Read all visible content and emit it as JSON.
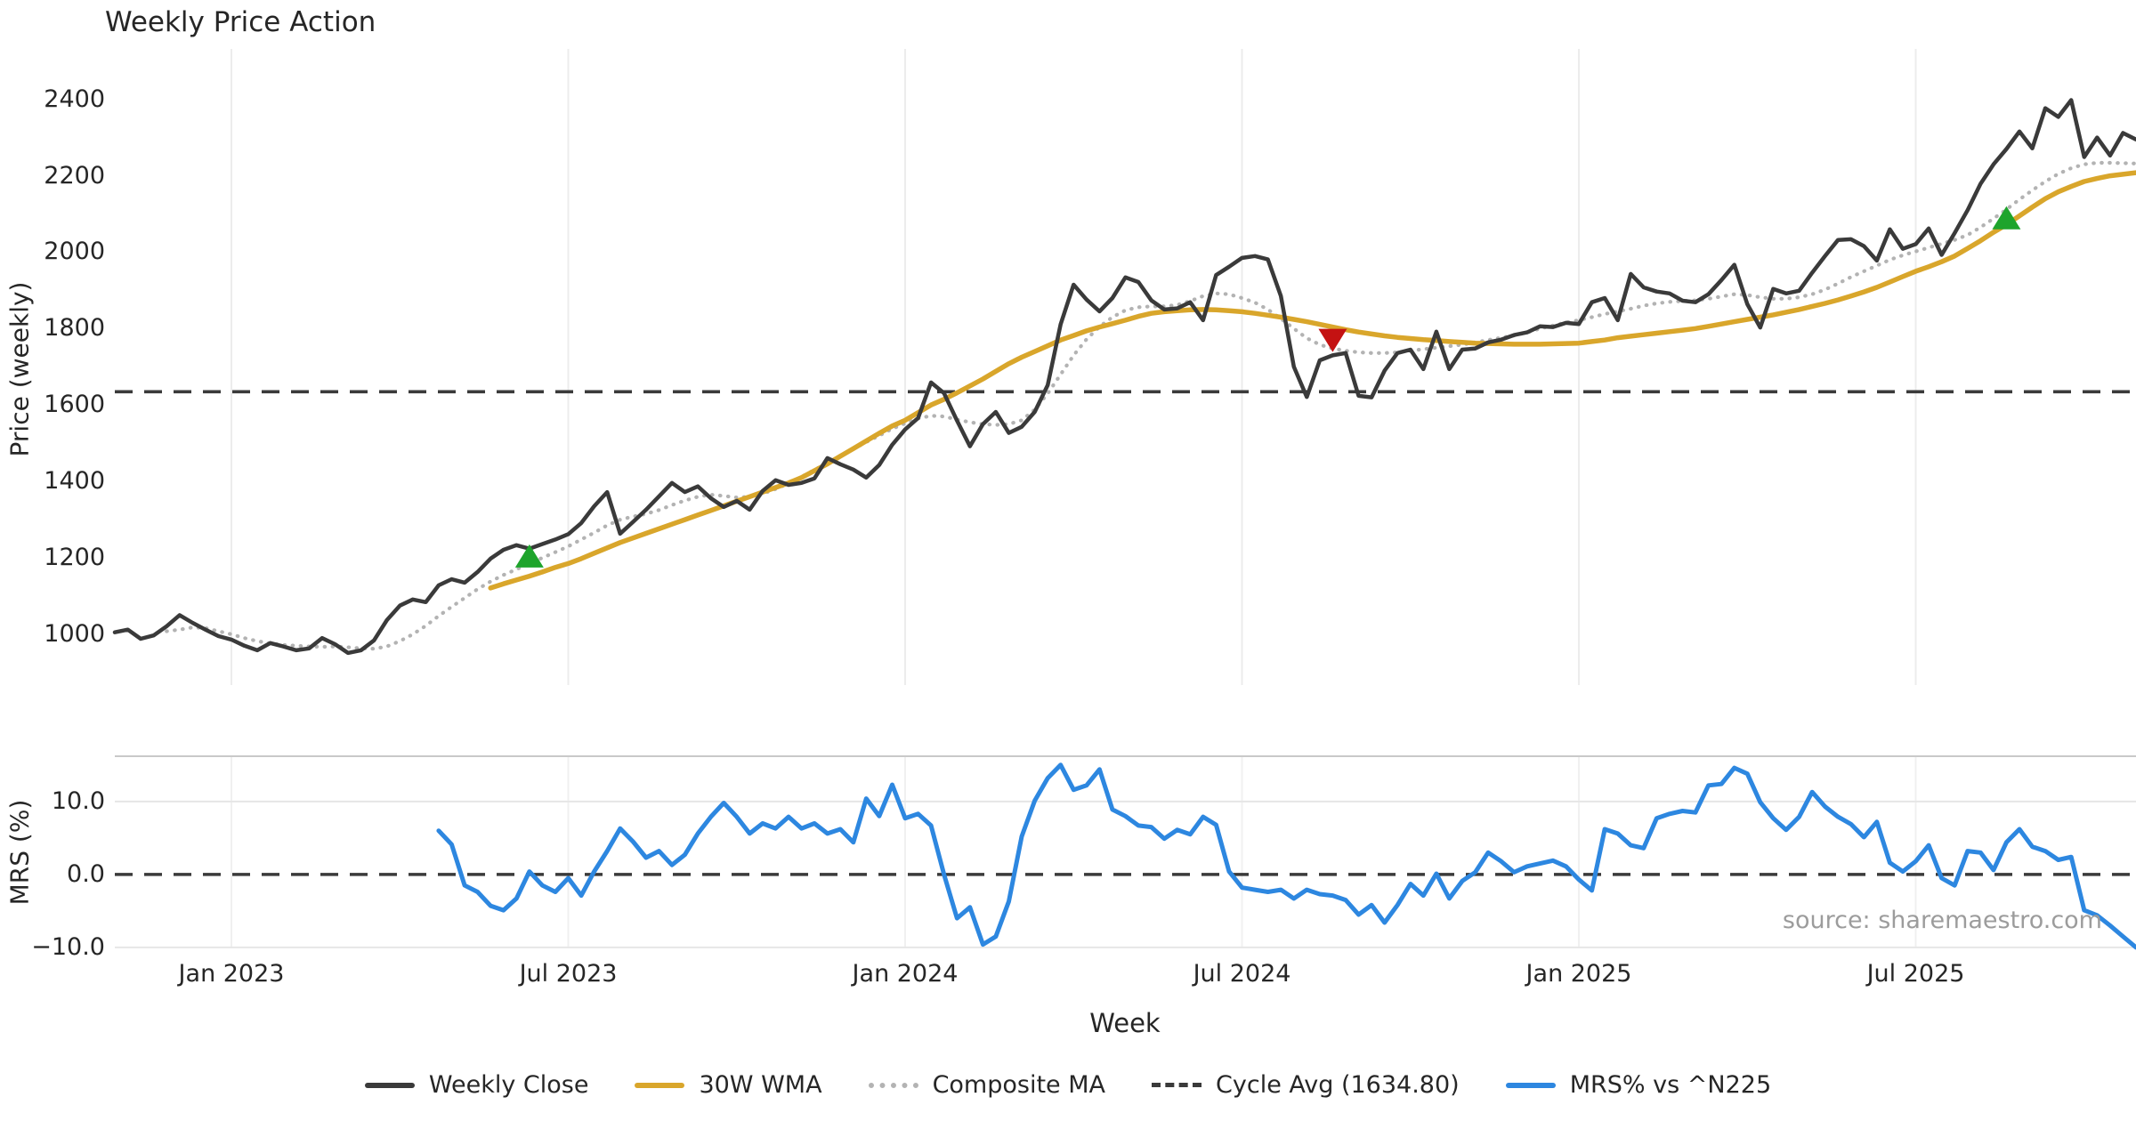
{
  "chart_data": {
    "type": "line",
    "title": "Weekly Price Action",
    "xlabel": "Week",
    "source": "source: sharemaestro.com",
    "weeks_total": 157,
    "x_ticks": [
      {
        "label": "Jan 2023",
        "week": 9
      },
      {
        "label": "Jul 2023",
        "week": 35
      },
      {
        "label": "Jan 2024",
        "week": 61
      },
      {
        "label": "Jul 2024",
        "week": 87
      },
      {
        "label": "Jan 2025",
        "week": 113
      },
      {
        "label": "Jul 2025",
        "week": 139
      }
    ],
    "price_panel": {
      "ylabel": "Price (weekly)",
      "ylim": [
        867,
        2532
      ],
      "yticks": [
        1000,
        1200,
        1400,
        1600,
        1800,
        2000,
        2200,
        2400
      ],
      "cycle_avg": {
        "label": "Cycle Avg (1634.80)",
        "value": 1634.8,
        "color": "#3a3a3a",
        "style": "dashed"
      },
      "series": [
        {
          "name": "Weekly Close",
          "color": "#3a3a3a",
          "style": "solid",
          "width": 4.5,
          "start_week": 0,
          "values": [
            1005,
            1012,
            988,
            997,
            1021,
            1050,
            1030,
            1012,
            995,
            986,
            970,
            958,
            977,
            968,
            958,
            963,
            990,
            974,
            951,
            958,
            984,
            1037,
            1075,
            1091,
            1084,
            1128,
            1144,
            1135,
            1163,
            1198,
            1221,
            1233,
            1224,
            1236,
            1248,
            1262,
            1291,
            1335,
            1372,
            1263,
            1294,
            1326,
            1361,
            1396,
            1372,
            1387,
            1356,
            1333,
            1349,
            1326,
            1375,
            1403,
            1391,
            1396,
            1408,
            1461,
            1445,
            1431,
            1410,
            1443,
            1496,
            1536,
            1566,
            1659,
            1631,
            1559,
            1492,
            1550,
            1582,
            1527,
            1543,
            1582,
            1652,
            1811,
            1915,
            1876,
            1845,
            1880,
            1934,
            1922,
            1874,
            1850,
            1853,
            1869,
            1822,
            1940,
            1962,
            1985,
            1990,
            1981,
            1885,
            1700,
            1621,
            1717,
            1730,
            1736,
            1624,
            1620,
            1690,
            1736,
            1745,
            1694,
            1792,
            1694,
            1745,
            1748,
            1764,
            1771,
            1783,
            1790,
            1806,
            1804,
            1815,
            1812,
            1869,
            1880,
            1822,
            1943,
            1908,
            1897,
            1892,
            1873,
            1869,
            1890,
            1927,
            1967,
            1864,
            1803,
            1904,
            1892,
            1899,
            1946,
            1990,
            2032,
            2034,
            2016,
            1978,
            2060,
            2009,
            2021,
            2062,
            1993,
            2050,
            2110,
            2179,
            2230,
            2270,
            2316,
            2272,
            2377,
            2354,
            2398,
            2249,
            2300,
            2253,
            2312,
            2295
          ]
        },
        {
          "name": "30W WMA",
          "color": "#d9a62b",
          "style": "solid",
          "width": 5.5,
          "start_week": 29,
          "values": [
            1121,
            1132,
            1142,
            1152,
            1163,
            1175,
            1185,
            1198,
            1212,
            1226,
            1240,
            1252,
            1264,
            1276,
            1288,
            1300,
            1312,
            1324,
            1336,
            1348,
            1360,
            1372,
            1384,
            1396,
            1410,
            1428,
            1446,
            1466,
            1486,
            1506,
            1526,
            1545,
            1560,
            1580,
            1600,
            1615,
            1632,
            1650,
            1668,
            1688,
            1708,
            1725,
            1740,
            1755,
            1770,
            1782,
            1794,
            1804,
            1813,
            1822,
            1832,
            1840,
            1844,
            1847,
            1849,
            1850,
            1849,
            1847,
            1844,
            1840,
            1835,
            1830,
            1824,
            1818,
            1811,
            1804,
            1797,
            1791,
            1786,
            1781,
            1777,
            1774,
            1771,
            1769,
            1766,
            1764,
            1762,
            1761,
            1760,
            1759,
            1759,
            1759,
            1760,
            1761,
            1762,
            1766,
            1770,
            1776,
            1780,
            1784,
            1788,
            1792,
            1796,
            1800,
            1806,
            1812,
            1818,
            1824,
            1830,
            1836,
            1843,
            1850,
            1858,
            1866,
            1875,
            1885,
            1896,
            1908,
            1922,
            1936,
            1950,
            1962,
            1975,
            1990,
            2010,
            2030,
            2052,
            2072,
            2095,
            2118,
            2140,
            2158,
            2172,
            2185,
            2193,
            2200,
            2204,
            2208
          ]
        },
        {
          "name": "Composite MA",
          "color": "#b3b3b3",
          "style": "dotted",
          "width": 4.2,
          "start_week": 4,
          "values": [
            1008,
            1012,
            1018,
            1016,
            1008,
            1000,
            990,
            982,
            976,
            972,
            970,
            968,
            967,
            968,
            966,
            963,
            962,
            968,
            982,
            1000,
            1022,
            1048,
            1072,
            1095,
            1118,
            1138,
            1155,
            1170,
            1185,
            1200,
            1215,
            1230,
            1248,
            1266,
            1285,
            1300,
            1308,
            1315,
            1325,
            1338,
            1350,
            1360,
            1365,
            1362,
            1358,
            1360,
            1368,
            1380,
            1395,
            1412,
            1430,
            1448,
            1466,
            1485,
            1503,
            1520,
            1538,
            1552,
            1565,
            1572,
            1570,
            1562,
            1555,
            1550,
            1548,
            1550,
            1560,
            1588,
            1630,
            1680,
            1730,
            1772,
            1805,
            1830,
            1848,
            1856,
            1858,
            1858,
            1862,
            1872,
            1885,
            1892,
            1890,
            1880,
            1868,
            1850,
            1826,
            1800,
            1775,
            1758,
            1748,
            1742,
            1738,
            1736,
            1736,
            1738,
            1742,
            1746,
            1750,
            1754,
            1758,
            1764,
            1770,
            1776,
            1782,
            1790,
            1800,
            1808,
            1816,
            1822,
            1830,
            1838,
            1845,
            1852,
            1860,
            1866,
            1870,
            1872,
            1874,
            1878,
            1884,
            1890,
            1888,
            1882,
            1878,
            1878,
            1882,
            1890,
            1902,
            1918,
            1935,
            1950,
            1965,
            1980,
            1992,
            2002,
            2012,
            2022,
            2032,
            2045,
            2065,
            2088,
            2112,
            2138,
            2162,
            2185,
            2205,
            2220,
            2230,
            2234,
            2234,
            2233,
            2232
          ]
        }
      ],
      "markers": [
        {
          "shape": "triangle-up",
          "color": "#1ea42c",
          "week": 32,
          "price": 1205
        },
        {
          "shape": "triangle-down",
          "color": "#c41212",
          "week": 94,
          "price": 1769
        },
        {
          "shape": "triangle-up",
          "color": "#1ea42c",
          "week": 146,
          "price": 2090
        }
      ]
    },
    "mrs_panel": {
      "ylabel": "MRS (%)",
      "ylim": [
        -11.6,
        16.2
      ],
      "yticks": [
        {
          "value": 10,
          "label": "10.0"
        },
        {
          "value": 0,
          "label": "0.0"
        },
        {
          "value": -10,
          "label": "−10.0"
        }
      ],
      "zero_line": {
        "value": 0,
        "color": "#3a3a3a",
        "style": "dashed"
      },
      "series": [
        {
          "name": "MRS% vs ^N225",
          "color": "#2d87e0",
          "style": "solid",
          "width": 5,
          "start_week": 25,
          "values": [
            6.0,
            4.1,
            -1.5,
            -2.4,
            -4.3,
            -4.9,
            -3.3,
            0.4,
            -1.5,
            -2.4,
            -0.5,
            -2.9,
            0.4,
            3.2,
            6.3,
            4.5,
            2.3,
            3.2,
            1.3,
            2.7,
            5.6,
            7.9,
            9.8,
            7.9,
            5.6,
            7.0,
            6.3,
            7.9,
            6.3,
            7.0,
            5.6,
            6.2,
            4.4,
            10.4,
            8.0,
            12.3,
            7.7,
            8.3,
            6.7,
            0.0,
            -6.0,
            -4.5,
            -9.6,
            -8.5,
            -3.7,
            5.2,
            10.1,
            13.2,
            15.0,
            11.6,
            12.2,
            14.4,
            8.9,
            8.0,
            6.7,
            6.5,
            4.9,
            6.1,
            5.5,
            7.9,
            6.8,
            0.4,
            -1.8,
            -2.1,
            -2.4,
            -2.1,
            -3.3,
            -2.1,
            -2.7,
            -2.9,
            -3.5,
            -5.5,
            -4.2,
            -6.6,
            -4.2,
            -1.3,
            -2.9,
            0.1,
            -3.3,
            -0.9,
            0.3,
            3.0,
            1.8,
            0.3,
            1.1,
            1.5,
            1.9,
            1.1,
            -0.7,
            -2.2,
            6.2,
            5.6,
            4.0,
            3.6,
            7.7,
            8.3,
            8.7,
            8.5,
            12.2,
            12.4,
            14.6,
            13.8,
            9.9,
            7.7,
            6.1,
            7.9,
            11.3,
            9.3,
            7.9,
            6.9,
            5.1,
            7.2,
            1.6,
            0.4,
            1.8,
            4.0,
            -0.5,
            -1.5,
            3.2,
            3.0,
            0.6,
            4.4,
            6.2,
            3.8,
            3.2,
            2.0,
            2.4,
            -4.9,
            -5.6,
            -7.0,
            -8.5,
            -10.0
          ]
        }
      ]
    },
    "legend": [
      {
        "label": "Weekly Close",
        "color": "#3a3a3a",
        "style": "solid"
      },
      {
        "label": "30W WMA",
        "color": "#d9a62b",
        "style": "solid"
      },
      {
        "label": "Composite MA",
        "color": "#b3b3b3",
        "style": "dotted"
      },
      {
        "label": "Cycle Avg (1634.80)",
        "color": "#3a3a3a",
        "style": "dashed"
      },
      {
        "label": "MRS% vs ^N225",
        "color": "#2d87e0",
        "style": "solid"
      }
    ]
  }
}
